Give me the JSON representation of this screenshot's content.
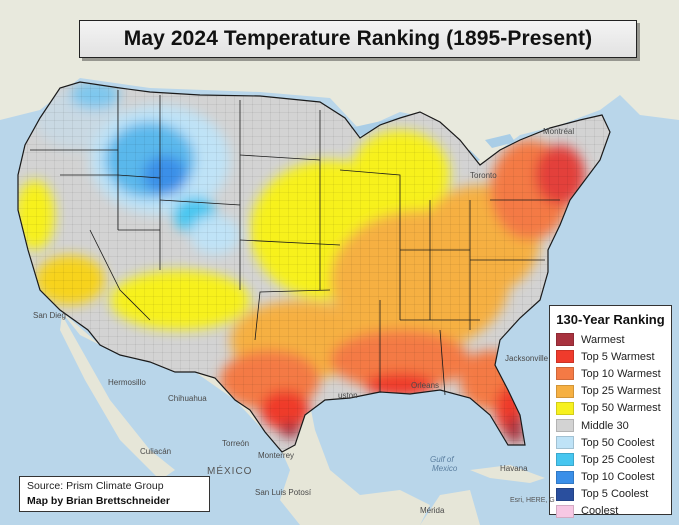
{
  "title": "May 2024 Temperature Ranking (1895-Present)",
  "legend": {
    "title": "130-Year Ranking",
    "items": [
      {
        "label": "Warmest",
        "color": "#a8323e"
      },
      {
        "label": "Top 5 Warmest",
        "color": "#ef3b2c"
      },
      {
        "label": "Top 10 Warmest",
        "color": "#f47a45"
      },
      {
        "label": "Top 25 Warmest",
        "color": "#f6b042"
      },
      {
        "label": "Top 50 Warmest",
        "color": "#f7f11f"
      },
      {
        "label": "Middle 30",
        "color": "#d3d3d3"
      },
      {
        "label": "Top 50 Coolest",
        "color": "#bfe3f7"
      },
      {
        "label": "Top 25 Coolest",
        "color": "#46c6f0"
      },
      {
        "label": "Top 10 Coolest",
        "color": "#3a8fe8"
      },
      {
        "label": "Top 5 Coolest",
        "color": "#2a4f9e"
      },
      {
        "label": "Coolest",
        "color": "#f7c8e4"
      }
    ]
  },
  "credits": {
    "source": "Source: Prism Climate Group",
    "author": "Map by Brian Brettschneider"
  },
  "attribution": "Esri, HERE, G",
  "places": {
    "mexico": "MÉXICO",
    "chihuahua": "Chihuahua",
    "hermosillo": "Hermosillo",
    "torreon": "Torreón",
    "monterrey": "Monterrey",
    "culiacan": "Culiacán",
    "san_luis_potosi": "San Luis\nPotosí",
    "havana": "Havana",
    "orleans": "Orleans",
    "jacksonville": "Jacksonville",
    "toronto": "Toronto",
    "montreal": "Montréal",
    "gulf_of_mexico": "Gulf of\nMexico",
    "merida": "Mérida",
    "san_diego": "San Dieg",
    "houston": "uston"
  },
  "colors": {
    "ocean": "#b9d6ea",
    "land_foreign": "#e6e6dc",
    "boundary": "#1a1a1a",
    "county_line": "rgba(0,0,0,0.25)"
  }
}
